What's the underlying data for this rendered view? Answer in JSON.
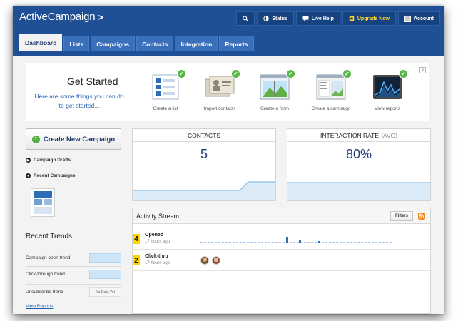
{
  "brand": {
    "name": "ActiveCampaign",
    "mark": ">"
  },
  "topnav": {
    "search_icon": "search-icon",
    "status": "Status",
    "live_help": "Live Help",
    "upgrade": "Upgrade Now",
    "account": "Account"
  },
  "tabs": [
    {
      "label": "Dashboard",
      "active": true
    },
    {
      "label": "Lists"
    },
    {
      "label": "Campaigns"
    },
    {
      "label": "Contacts"
    },
    {
      "label": "Integration"
    },
    {
      "label": "Reports"
    }
  ],
  "get_started": {
    "title": "Get Started",
    "subtitle": "Here are some things you can do to get started...",
    "close": "x",
    "items": [
      {
        "label": "Create a list",
        "icon": "list-icon",
        "done": true
      },
      {
        "label": "Import contacts",
        "icon": "contact-cards-icon",
        "done": true
      },
      {
        "label": "Create a form",
        "icon": "form-icon",
        "done": true
      },
      {
        "label": "Create a campaign",
        "icon": "campaign-icon",
        "done": true
      },
      {
        "label": "View reports",
        "icon": "report-chart-icon",
        "done": true
      }
    ]
  },
  "sidebar": {
    "create_button": "Create New Campaign",
    "campaign_drafts": "Campaign Drafts",
    "recent_campaigns": "Recent Campaigns",
    "trends_title": "Recent Trends",
    "trends": [
      {
        "label": "Campaign open trend",
        "state": "chart"
      },
      {
        "label": "Click-through trend",
        "state": "chart"
      },
      {
        "label": "Unsubscribe trend",
        "state": "No Data Yet"
      }
    ],
    "view_reports": "View Reports"
  },
  "stats": {
    "contacts": {
      "title": "CONTACTS",
      "value": "5"
    },
    "interaction": {
      "title": "INTERACTION RATE",
      "suffix": "(AVG)",
      "value": "80%"
    }
  },
  "activity": {
    "title": "Activity Stream",
    "filters": "Filters",
    "rows": [
      {
        "count": "4",
        "label": "Opened",
        "time": "17 hours ago"
      },
      {
        "count": "2",
        "label": "Click-thru",
        "time": "17 hours ago"
      }
    ]
  },
  "colors": {
    "header": "#1f4f94",
    "accent_green": "#57b847",
    "count_badge": "#ffd600",
    "upgrade_text": "#ffdc2e"
  }
}
